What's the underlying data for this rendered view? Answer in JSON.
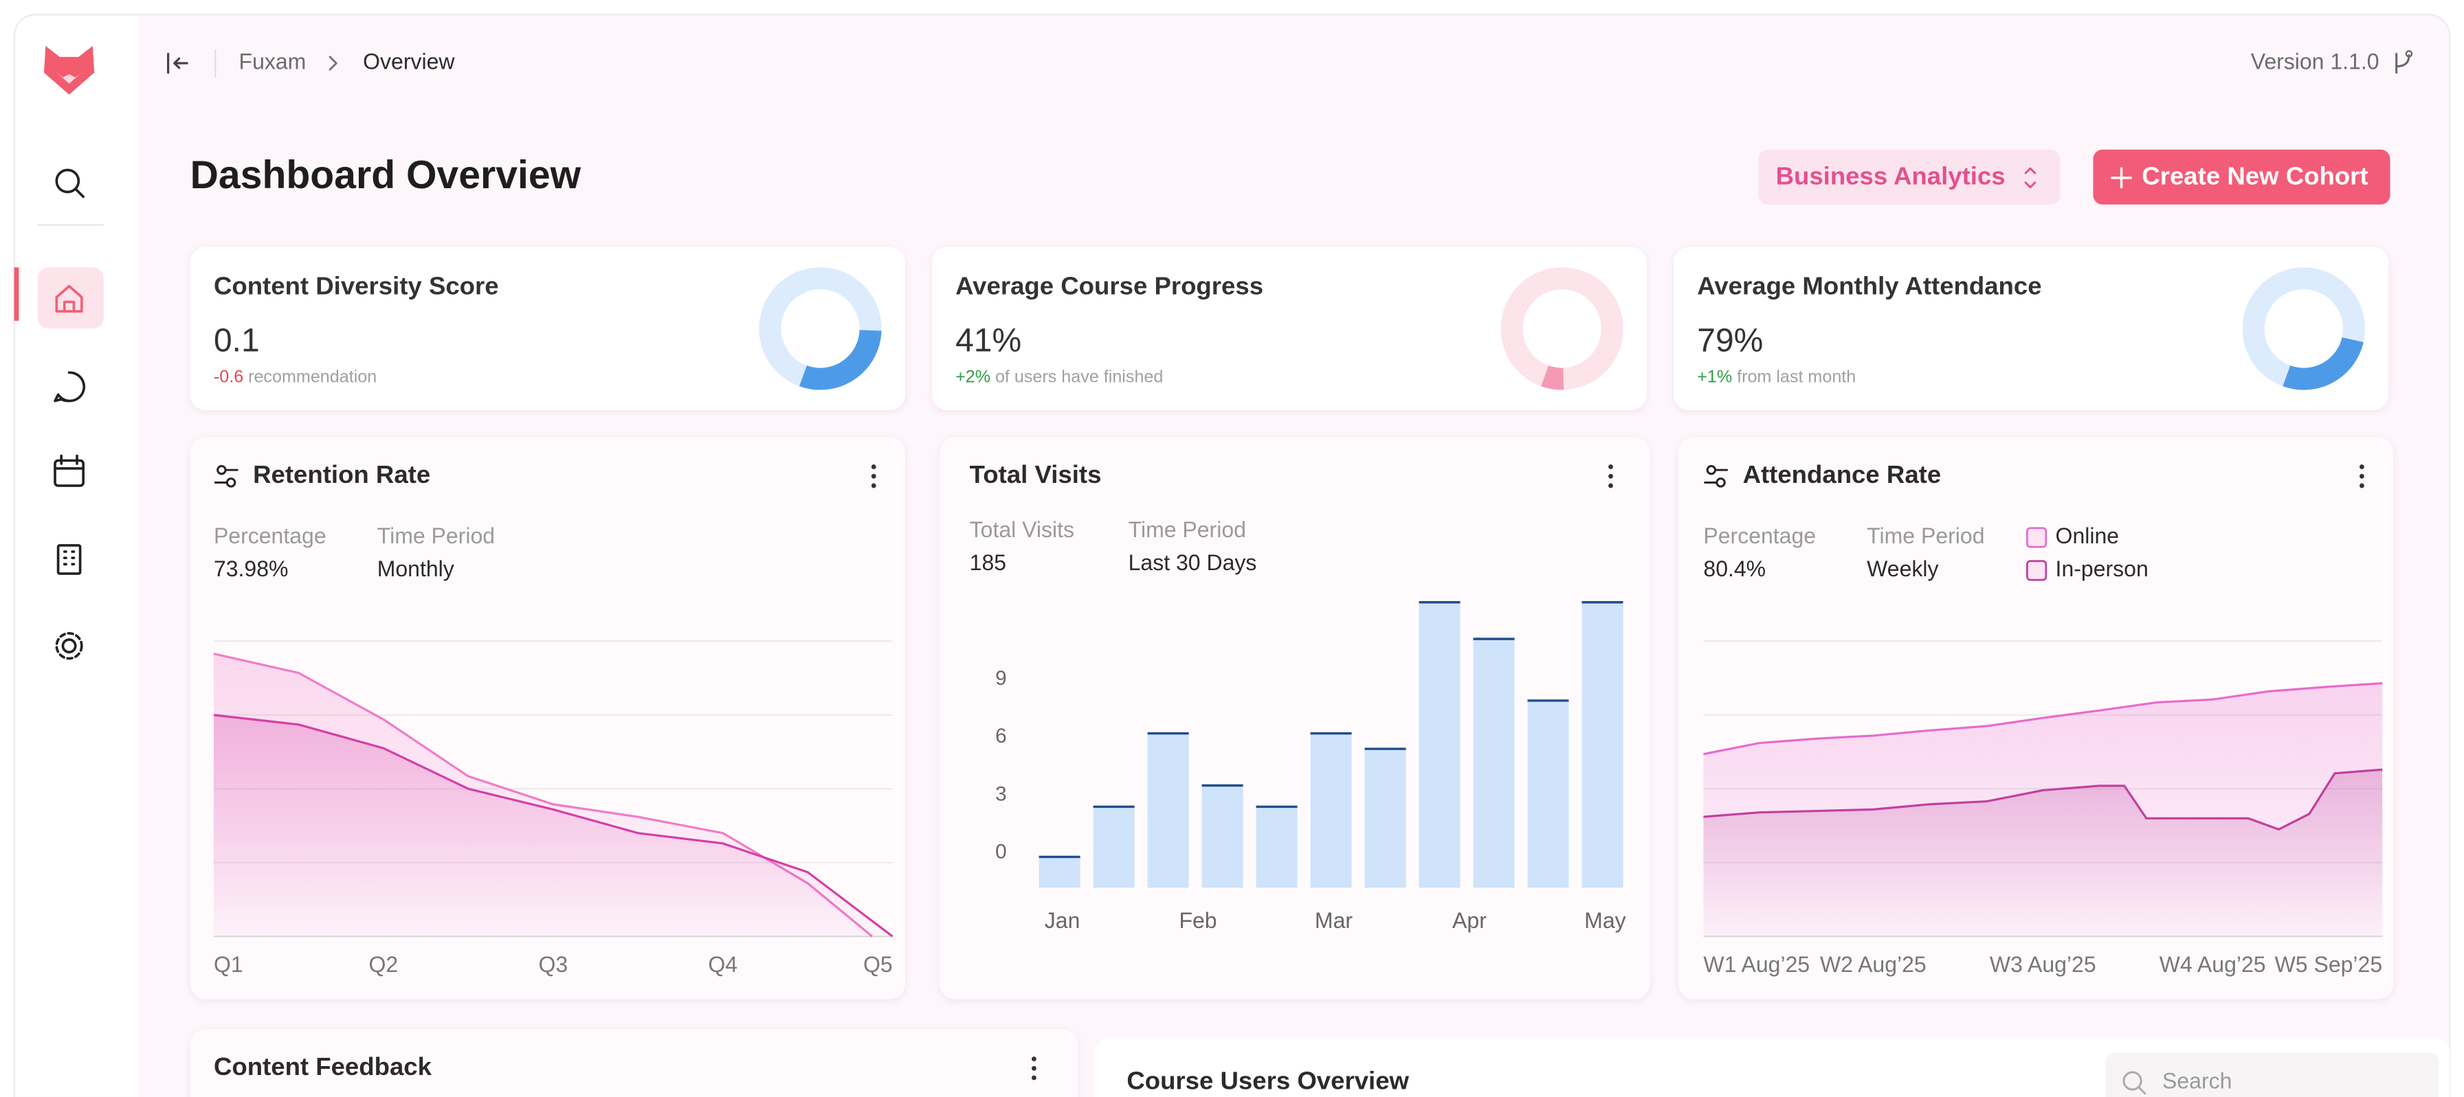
{
  "breadcrumb": {
    "root": "Fuxam",
    "current": "Overview"
  },
  "version": "Version 1.1.0",
  "header": {
    "title": "Dashboard Overview",
    "select": "Business Analytics",
    "button": "Create New Cohort"
  },
  "stat_cards": [
    {
      "title": "Content Diversity Score",
      "value": "0.1",
      "delta": "-0.6",
      "note": "recommendation",
      "delta_color": "#e5484d",
      "ring": 30,
      "ring_color": "#4d9be8",
      "ring_track": "#dcecfd"
    },
    {
      "title": "Average Course Progress",
      "value": "41%",
      "delta": "+2%",
      "note": "of users have finished",
      "delta_color": "#2f9e44",
      "ring": 6,
      "ring_color": "#f59ab5",
      "ring_track": "#fde3ea"
    },
    {
      "title": "Average Monthly Attendance",
      "value": "79%",
      "delta": "+1%",
      "note": "from last month",
      "delta_color": "#2f9e44",
      "ring": 27,
      "ring_color": "#4d9be8",
      "ring_track": "#dcecfd"
    }
  ],
  "chart_data": [
    {
      "type": "area",
      "title": "Retention Rate",
      "stats": [
        {
          "label": "Percentage",
          "value": "73.98%"
        },
        {
          "label": "Time Period",
          "value": "Monthly"
        }
      ],
      "categories": [
        "Q1",
        "Q2",
        "Q3",
        "Q4",
        "Q5"
      ],
      "xlim": [
        0,
        4
      ],
      "ylim": [
        0,
        4
      ],
      "grid_lines": [
        0,
        1,
        2,
        3,
        4
      ],
      "series": [
        {
          "color": "#f07cc8",
          "x": [
            0,
            0.5,
            1,
            1.5,
            2,
            2.5,
            3,
            3.5,
            3.88
          ],
          "values": [
            3.83,
            3.57,
            2.94,
            2.17,
            1.79,
            1.62,
            1.4,
            0.72,
            0
          ]
        },
        {
          "color": "#d43fa8",
          "x": [
            0,
            0.5,
            1,
            1.5,
            2,
            2.5,
            3,
            3.5,
            4
          ],
          "values": [
            3.0,
            2.87,
            2.55,
            2.0,
            1.72,
            1.4,
            1.26,
            0.87,
            0
          ]
        }
      ]
    },
    {
      "type": "bar",
      "title": "Total Visits",
      "stats": [
        {
          "label": "Total Visits",
          "value": "185"
        },
        {
          "label": "Time Period",
          "value": "Last 30 Days"
        }
      ],
      "x_labels": [
        "Jan",
        "Feb",
        "Mar",
        "Apr",
        "May"
      ],
      "values": [
        -0.2,
        2.4,
        6.2,
        3.5,
        2.4,
        6.2,
        5.4,
        13.0,
        11.1,
        7.9,
        13.0
      ],
      "color": "#cfe3fb",
      "edge_color": "#1f4e8c",
      "ylim": [
        -1.8,
        13.1
      ],
      "yticks": [
        0,
        3,
        6,
        9
      ]
    },
    {
      "type": "area",
      "title": "Attendance Rate",
      "stats": [
        {
          "label": "Percentage",
          "value": "80.4%"
        },
        {
          "label": "Time Period",
          "value": "Weekly"
        }
      ],
      "categories": [
        "W1 Aug’25",
        "W2 Aug’25",
        "W3 Aug’25",
        "W4 Aug’25",
        "W5 Sep’25"
      ],
      "xlim": [
        0,
        4
      ],
      "ylim": [
        0,
        4
      ],
      "grid_lines": [
        0,
        1,
        2,
        3,
        4
      ],
      "series": [
        {
          "name": "Online",
          "color": "#e66ccb",
          "x": [
            0,
            0.33,
            0.67,
            1,
            1.33,
            1.67,
            2,
            2.33,
            2.67,
            3,
            3.33,
            3.67,
            4
          ],
          "values": [
            2.47,
            2.62,
            2.68,
            2.72,
            2.79,
            2.85,
            2.96,
            3.06,
            3.17,
            3.21,
            3.32,
            3.38,
            3.43
          ]
        },
        {
          "name": "In-person",
          "color": "#c040a0",
          "x": [
            0,
            0.33,
            0.67,
            1,
            1.33,
            1.67,
            2,
            2.33,
            2.48,
            2.61,
            2.93,
            3.21,
            3.39,
            3.57,
            3.72,
            4
          ],
          "values": [
            1.62,
            1.68,
            1.7,
            1.72,
            1.79,
            1.83,
            1.98,
            2.04,
            2.04,
            1.6,
            1.6,
            1.6,
            1.45,
            1.66,
            2.21,
            2.26
          ]
        }
      ]
    }
  ],
  "feedback": {
    "title": "Content Feedback"
  },
  "users": {
    "title": "Course Users Overview",
    "search": "Search"
  }
}
